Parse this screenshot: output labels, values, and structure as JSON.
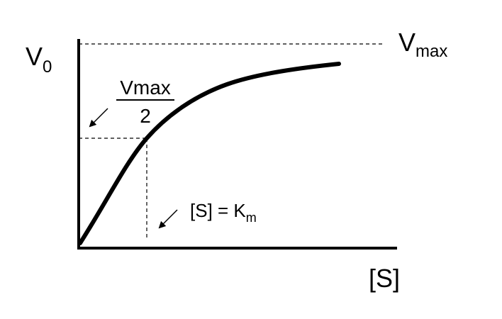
{
  "y_axis_label": {
    "main": "V",
    "sub": "0"
  },
  "vmax_label": {
    "main": "V",
    "sub": "max"
  },
  "half_vmax_label": {
    "numerator": "Vmax",
    "denominator": "2"
  },
  "km_label": {
    "main": "[S] = K",
    "sub": "m"
  },
  "x_axis_label": "[S]"
}
